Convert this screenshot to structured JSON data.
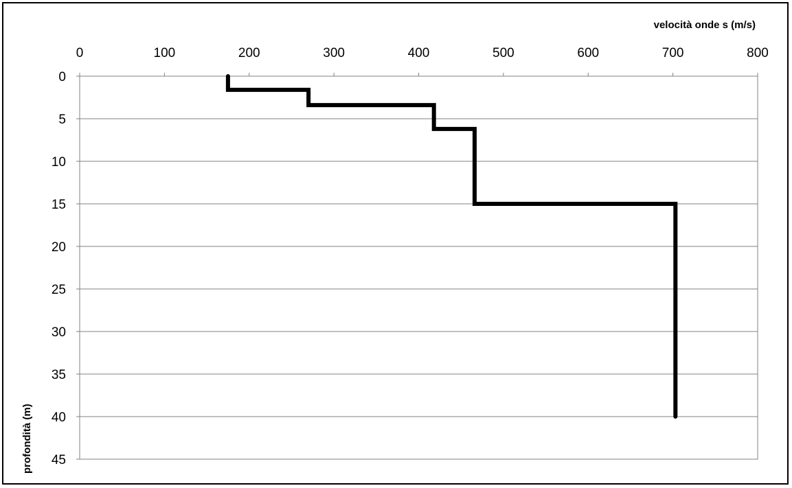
{
  "chart_data": {
    "type": "line",
    "title": "",
    "xlabel": "velocità onde s (m/s)",
    "ylabel": "profondità (m)",
    "xlim": [
      0,
      800
    ],
    "ylim": [
      0,
      45
    ],
    "y_inverted": true,
    "x_axis_position": "top",
    "x_ticks": [
      0,
      100,
      200,
      300,
      400,
      500,
      600,
      700,
      800
    ],
    "y_ticks": [
      0,
      5,
      10,
      15,
      20,
      25,
      30,
      35,
      40,
      45
    ],
    "grid": "horizontal",
    "legend": "none",
    "line_style": "step",
    "line_color": "#000000",
    "series": [
      {
        "x": [
          175,
          175,
          270,
          270,
          418,
          418,
          466,
          466,
          703,
          703
        ],
        "y": [
          0,
          1.6,
          1.6,
          3.4,
          3.4,
          6.2,
          6.2,
          15,
          15,
          40
        ]
      }
    ]
  }
}
